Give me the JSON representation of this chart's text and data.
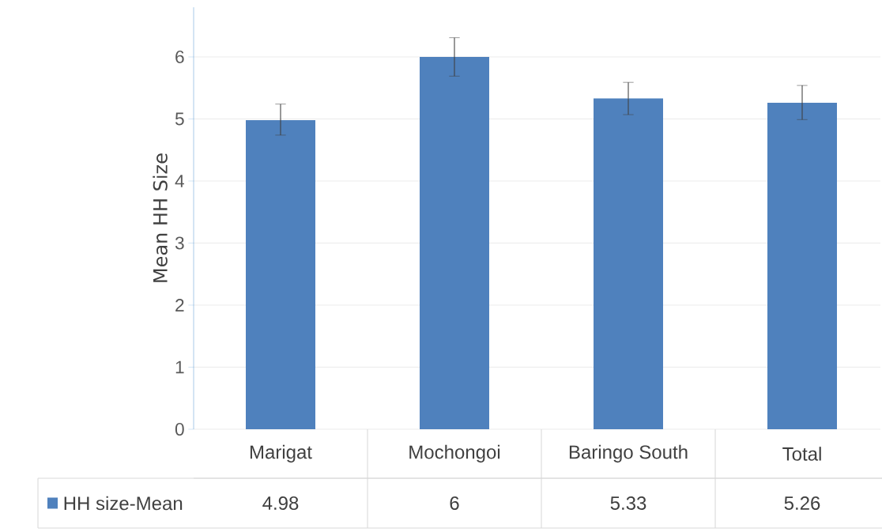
{
  "chart_data": {
    "type": "bar",
    "ylabel": "Mean HH Size",
    "categories": [
      "Marigat",
      "Mochongoi",
      "Baringo South",
      "Total"
    ],
    "series": [
      {
        "name": "HH size-Mean",
        "color": "#4f81bd",
        "values": [
          4.98,
          6,
          5.33,
          5.26
        ],
        "errors": [
          [
            4.74,
            5.24
          ],
          [
            5.69,
            6.31
          ],
          [
            5.07,
            5.59
          ],
          [
            4.99,
            5.54
          ]
        ]
      }
    ],
    "ylim": [
      0,
      6.8
    ],
    "yticks": [
      0,
      1,
      2,
      3,
      4,
      5,
      6
    ],
    "grid": "y",
    "legend": "bottom",
    "data_labels": true
  }
}
